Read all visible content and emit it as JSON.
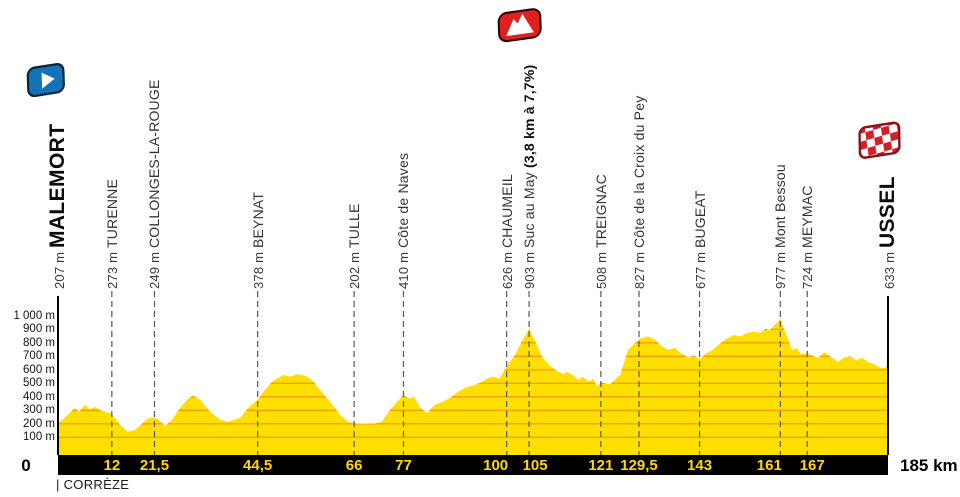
{
  "stage": {
    "footer_department": "| CORRÈZE",
    "start_km_label": "0",
    "end_km_label": "185 km",
    "icons": {
      "start": "start-flag-icon",
      "summit": "mountain-summit-icon",
      "finish": "finish-checkered-flag-icon"
    },
    "colors": {
      "profile_yellow": "#ffdf00",
      "gridline_orange": "#f2a100",
      "bar_black": "#000000",
      "distance_label_yellow": "#ffd800",
      "dashed_line_gray": "#575757",
      "start_flag_blue": "#1273b8",
      "summit_badge_red": "#e0201f",
      "finish_flag_red": "#d42027"
    }
  },
  "chart_data": {
    "type": "area",
    "title": "Stage elevation profile Malemort to Ussel",
    "x_unit": "km",
    "y_unit": "m",
    "x_range": [
      0,
      185
    ],
    "y_range": [
      0,
      1095
    ],
    "grid": "horizontal lines every 100 m clipped to profile, vertical dashed lines at waypoints",
    "y_axis_ticks": [
      {
        "value": 1000,
        "label": "1 000 m"
      },
      {
        "value": 900,
        "label": "900 m"
      },
      {
        "value": 800,
        "label": "800 m"
      },
      {
        "value": 700,
        "label": "700 m"
      },
      {
        "value": 600,
        "label": "600 m"
      },
      {
        "value": 500,
        "label": "500 m"
      },
      {
        "value": 400,
        "label": "400 m"
      },
      {
        "value": 300,
        "label": "300 m"
      },
      {
        "value": 200,
        "label": "200 m"
      },
      {
        "value": 100,
        "label": "100 m"
      }
    ],
    "waypoints": [
      {
        "km": 0,
        "km_label": "0",
        "elevation_label": "207 m",
        "name": "MALEMORT",
        "type": "start"
      },
      {
        "km": 12,
        "km_label": "12",
        "elevation_label": "273 m",
        "name": "TURENNE",
        "type": "town"
      },
      {
        "km": 21.5,
        "km_label": "21,5",
        "elevation_label": "249 m",
        "name": "COLLONGES-LA-ROUGE",
        "type": "town"
      },
      {
        "km": 44.5,
        "km_label": "44,5",
        "elevation_label": "378 m",
        "name": "BEYNAT",
        "type": "town"
      },
      {
        "km": 66,
        "km_label": "66",
        "elevation_label": "202 m",
        "name": "TULLE",
        "type": "town"
      },
      {
        "km": 77,
        "km_label": "77",
        "elevation_label": "410 m",
        "name": "Côte de Naves",
        "type": "climb"
      },
      {
        "km": 100,
        "km_label": "100",
        "elevation_label": "626 m",
        "name": "CHAUMEIL",
        "type": "town"
      },
      {
        "km": 105,
        "km_label": "105",
        "elevation_label": "903 m",
        "name": "Suc au May ",
        "detail": "(3,8 km à 7,7%)",
        "type": "climb"
      },
      {
        "km": 121,
        "km_label": "121",
        "elevation_label": "508 m",
        "name": "TREIGNAC",
        "type": "town"
      },
      {
        "km": 129.5,
        "km_label": "129,5",
        "elevation_label": "827 m",
        "name": "Côte de la Croix du Pey",
        "type": "climb"
      },
      {
        "km": 143,
        "km_label": "143",
        "elevation_label": "677 m",
        "name": "BUGEAT",
        "type": "town"
      },
      {
        "km": 161,
        "km_label": "161",
        "elevation_label": "977 m",
        "name": "Mont Bessou",
        "type": "climb"
      },
      {
        "km": 167,
        "km_label": "167",
        "elevation_label": "724 m",
        "name": "MEYMAC",
        "type": "town"
      },
      {
        "km": 185,
        "km_label": "185 km",
        "elevation_label": "633 m",
        "name": "USSEL",
        "type": "finish"
      }
    ],
    "profile": [
      [
        0,
        207
      ],
      [
        1.2,
        235
      ],
      [
        2.2,
        267
      ],
      [
        3.8,
        318
      ],
      [
        4.7,
        289
      ],
      [
        6,
        341
      ],
      [
        7.1,
        305
      ],
      [
        8.2,
        326
      ],
      [
        9.4,
        300
      ],
      [
        10.6,
        288
      ],
      [
        12,
        273
      ],
      [
        13.8,
        195
      ],
      [
        15.6,
        141
      ],
      [
        17.2,
        156
      ],
      [
        18.7,
        200
      ],
      [
        20,
        237
      ],
      [
        21.5,
        249
      ],
      [
        22.7,
        222
      ],
      [
        23.9,
        185
      ],
      [
        25.4,
        230
      ],
      [
        27.2,
        318
      ],
      [
        29,
        385
      ],
      [
        30.1,
        410
      ],
      [
        31.7,
        378
      ],
      [
        33.9,
        289
      ],
      [
        36.1,
        232
      ],
      [
        37.9,
        213
      ],
      [
        40.6,
        245
      ],
      [
        42.4,
        318
      ],
      [
        44.5,
        378
      ],
      [
        46.1,
        450
      ],
      [
        47.7,
        511
      ],
      [
        50.2,
        562
      ],
      [
        51.7,
        548
      ],
      [
        53.3,
        568
      ],
      [
        55.1,
        556
      ],
      [
        56.6,
        526
      ],
      [
        58.4,
        452
      ],
      [
        60.6,
        363
      ],
      [
        62.9,
        267
      ],
      [
        64.8,
        212
      ],
      [
        66,
        202
      ],
      [
        68.4,
        200
      ],
      [
        70.7,
        202
      ],
      [
        72.2,
        215
      ],
      [
        74,
        304
      ],
      [
        75.9,
        375
      ],
      [
        77,
        410
      ],
      [
        78.5,
        386
      ],
      [
        79.4,
        400
      ],
      [
        80.7,
        320
      ],
      [
        82.3,
        281
      ],
      [
        84,
        341
      ],
      [
        85.8,
        363
      ],
      [
        87.4,
        393
      ],
      [
        89.2,
        437
      ],
      [
        90.7,
        467
      ],
      [
        92.3,
        481
      ],
      [
        94.1,
        504
      ],
      [
        95.9,
        541
      ],
      [
        97.2,
        549
      ],
      [
        98.4,
        534
      ],
      [
        100,
        626
      ],
      [
        101.9,
        711
      ],
      [
        103,
        785
      ],
      [
        105,
        903
      ],
      [
        106.5,
        800
      ],
      [
        108,
        690
      ],
      [
        110,
        620
      ],
      [
        111.5,
        585
      ],
      [
        112.7,
        570
      ],
      [
        113.5,
        585
      ],
      [
        114.8,
        560
      ],
      [
        116,
        525
      ],
      [
        117,
        550
      ],
      [
        118.3,
        510
      ],
      [
        119.2,
        533
      ],
      [
        120.2,
        478
      ],
      [
        121,
        508
      ],
      [
        123,
        490
      ],
      [
        125.3,
        563
      ],
      [
        127.1,
        748
      ],
      [
        129.5,
        827
      ],
      [
        131.3,
        849
      ],
      [
        133.1,
        822
      ],
      [
        134.7,
        770
      ],
      [
        136,
        748
      ],
      [
        137.5,
        763
      ],
      [
        138.7,
        726
      ],
      [
        140.4,
        692
      ],
      [
        141.8,
        706
      ],
      [
        143,
        677
      ],
      [
        144.4,
        720
      ],
      [
        145.8,
        745
      ],
      [
        147.4,
        790
      ],
      [
        149,
        830
      ],
      [
        150.7,
        860
      ],
      [
        152,
        846
      ],
      [
        153.6,
        872
      ],
      [
        155.2,
        883
      ],
      [
        156.6,
        872
      ],
      [
        157.6,
        905
      ],
      [
        158.6,
        893
      ],
      [
        159.8,
        933
      ],
      [
        161,
        977
      ],
      [
        162.4,
        855
      ],
      [
        163.6,
        745
      ],
      [
        164.6,
        762
      ],
      [
        165.7,
        715
      ],
      [
        167,
        724
      ],
      [
        168.4,
        700
      ],
      [
        169.4,
        688
      ],
      [
        170.8,
        730
      ],
      [
        172.4,
        692
      ],
      [
        173.8,
        660
      ],
      [
        175.2,
        690
      ],
      [
        176.6,
        700
      ],
      [
        178,
        670
      ],
      [
        179.2,
        690
      ],
      [
        180.5,
        658
      ],
      [
        182,
        640
      ],
      [
        183.2,
        616
      ],
      [
        184.2,
        612
      ],
      [
        185,
        633
      ]
    ],
    "legend_position": "none"
  }
}
